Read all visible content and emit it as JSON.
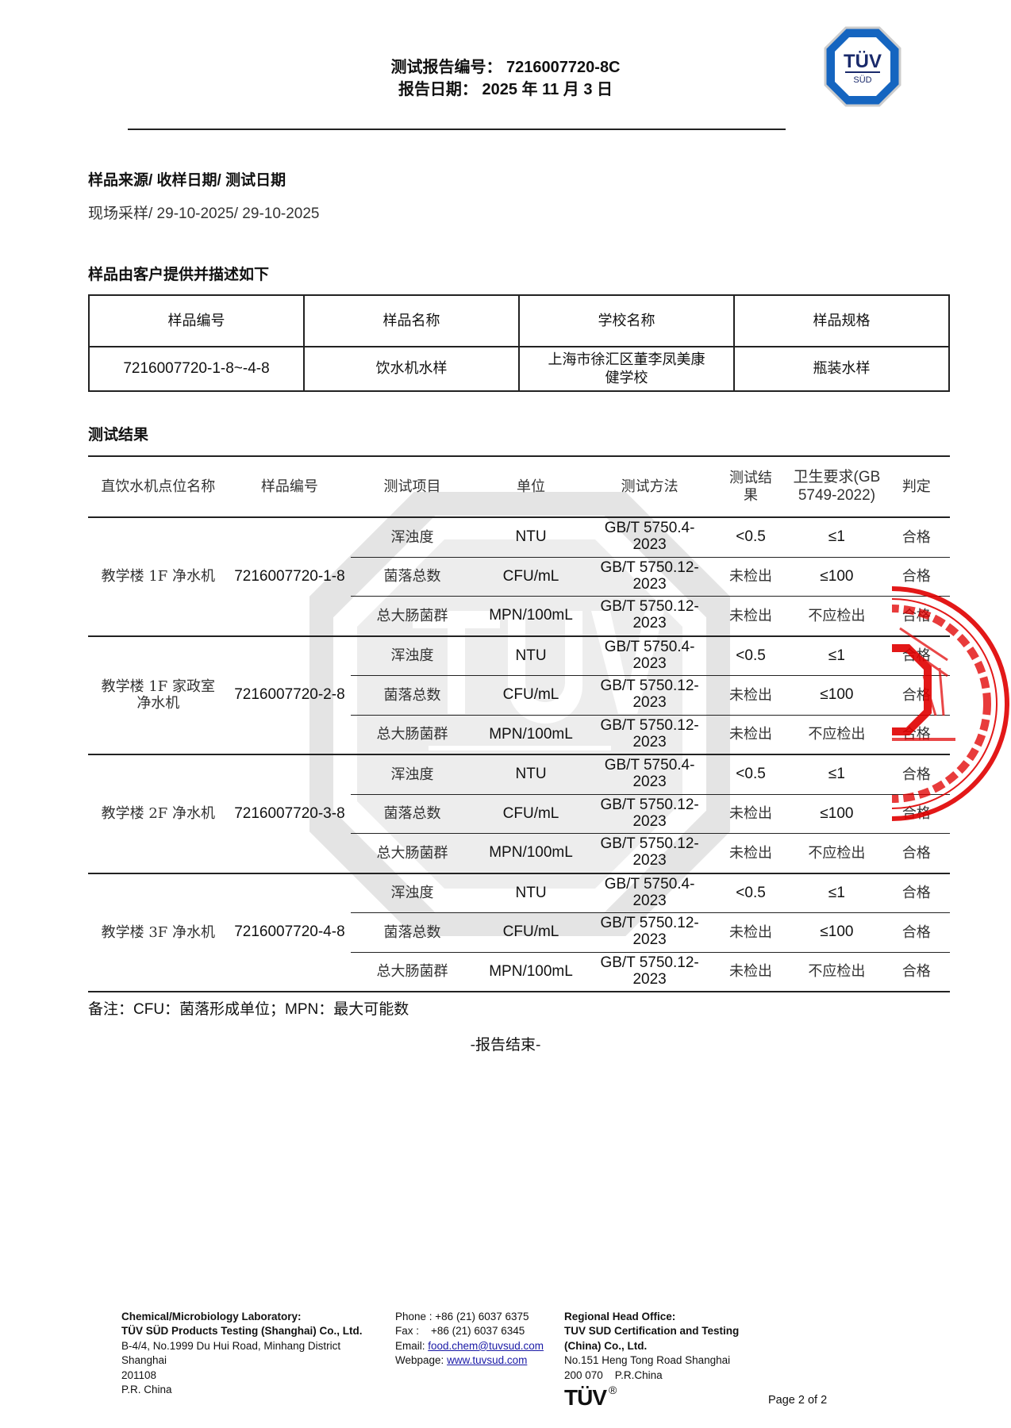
{
  "header": {
    "report_no_label": "测试报告编号：",
    "report_no": "7216007720-8C",
    "date_label": "报告日期：",
    "date": "2025 年 11 月 3 日",
    "logo_text_top": "TÜV",
    "logo_text_bottom": "SÜD",
    "brand_color": "#1565c0"
  },
  "sample_info": {
    "title": "样品来源/ 收样日期/ 测试日期",
    "value": "现场采样/ 29-10-2025/ 29-10-2025"
  },
  "sample_desc": {
    "title": "样品由客户提供并描述如下",
    "headers": [
      "样品编号",
      "样品名称",
      "学校名称",
      "样品规格"
    ],
    "row": [
      "7216007720-1-8~-4-8",
      "饮水机水样",
      "上海市徐汇区董李凤美康健学校",
      "瓶装水样"
    ]
  },
  "results": {
    "title": "测试结果",
    "headers": [
      "直饮水机点位名称",
      "样品编号",
      "测试项目",
      "单位",
      "测试方法",
      "测试结果",
      "卫生要求(GB 5749-2022)",
      "判定"
    ],
    "groups": [
      {
        "location": "教学楼 1F 净水机",
        "sample_no": "7216007720-1-8",
        "rows": [
          [
            "浑浊度",
            "NTU",
            "GB/T 5750.4-2023",
            "<0.5",
            "≤1",
            "合格"
          ],
          [
            "菌落总数",
            "CFU/mL",
            "GB/T 5750.12-2023",
            "未检出",
            "≤100",
            "合格"
          ],
          [
            "总大肠菌群",
            "MPN/100mL",
            "GB/T 5750.12-2023",
            "未检出",
            "不应检出",
            "合格"
          ]
        ]
      },
      {
        "location": "教学楼 1F 家政室净水机",
        "sample_no": "7216007720-2-8",
        "rows": [
          [
            "浑浊度",
            "NTU",
            "GB/T 5750.4-2023",
            "<0.5",
            "≤1",
            "合格"
          ],
          [
            "菌落总数",
            "CFU/mL",
            "GB/T 5750.12-2023",
            "未检出",
            "≤100",
            "合格"
          ],
          [
            "总大肠菌群",
            "MPN/100mL",
            "GB/T 5750.12-2023",
            "未检出",
            "不应检出",
            "合格"
          ]
        ]
      },
      {
        "location": "教学楼 2F 净水机",
        "sample_no": "7216007720-3-8",
        "rows": [
          [
            "浑浊度",
            "NTU",
            "GB/T 5750.4-2023",
            "<0.5",
            "≤1",
            "合格"
          ],
          [
            "菌落总数",
            "CFU/mL",
            "GB/T 5750.12-2023",
            "未检出",
            "≤100",
            "合格"
          ],
          [
            "总大肠菌群",
            "MPN/100mL",
            "GB/T 5750.12-2023",
            "未检出",
            "不应检出",
            "合格"
          ]
        ]
      },
      {
        "location": "教学楼 3F 净水机",
        "sample_no": "7216007720-4-8",
        "rows": [
          [
            "浑浊度",
            "NTU",
            "GB/T 5750.4-2023",
            "<0.5",
            "≤1",
            "合格"
          ],
          [
            "菌落总数",
            "CFU/mL",
            "GB/T 5750.12-2023",
            "未检出",
            "≤100",
            "合格"
          ],
          [
            "总大肠菌群",
            "MPN/100mL",
            "GB/T 5750.12-2023",
            "未检出",
            "不应检出",
            "合格"
          ]
        ]
      }
    ],
    "note": "备注：CFU：菌落形成单位；MPN：最大可能数",
    "end": "-报告结束-"
  },
  "stamp": {
    "text": "...ING (SHANGHAI) CO., LTD. 上海)有限公司 ...告专用章",
    "color": "#e00000"
  },
  "footer": {
    "lab_title": "Chemical/Microbiology Laboratory:",
    "lab_name": "TÜV SÜD Products Testing (Shanghai) Co., Ltd.",
    "lab_addr1": "B-4/4, No.1999 Du Hui Road, Minhang District",
    "lab_addr2": "Shanghai",
    "lab_addr3": "201108",
    "lab_addr4": "P.R. China",
    "phone": "Phone : +86 (21) 6037 6375",
    "fax": "Fax :    +86 (21) 6037 6345",
    "email_label": "Email: ",
    "email": "food.chem@tuvsud.com",
    "web_label": "Webpage: ",
    "web": "www.tuvsud.com",
    "ho_title": "Regional Head Office:",
    "ho_name1": "TUV SUD Certification and Testing",
    "ho_name2": "(China) Co., Ltd.",
    "ho_addr1": "No.151 Heng Tong Road Shanghai",
    "ho_addr2": "200 070    P.R.China",
    "tuv_mark": "TÜV",
    "registered": "®",
    "page": "Page 2 of 2"
  }
}
